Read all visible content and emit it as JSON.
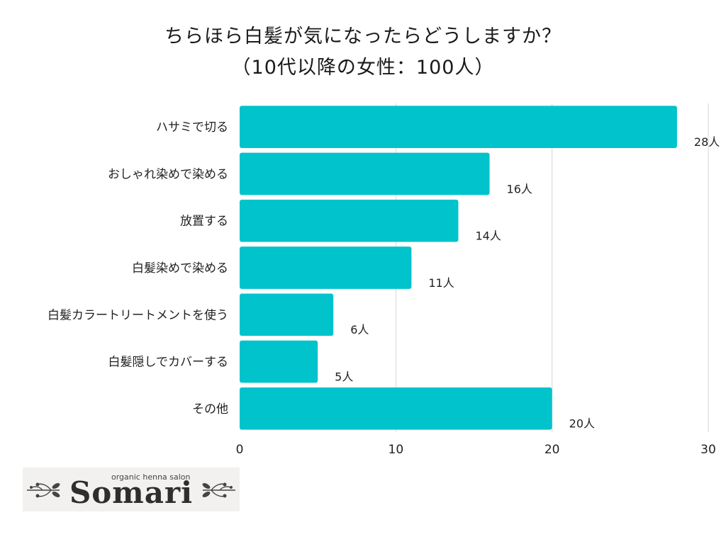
{
  "chart_data": {
    "type": "bar",
    "orientation": "horizontal",
    "title": "ちらほら白髪が気になったらどうしますか？",
    "subtitle": "（10代以降の女性：100人）",
    "categories": [
      "ハサミで切る",
      "おしゃれ染めで染める",
      "放置する",
      "白髪染めで染める",
      "白髪カラートリートメントを使う",
      "白髪隠しでカバーする",
      "その他"
    ],
    "values": [
      28,
      16,
      14,
      11,
      6,
      5,
      20
    ],
    "value_labels": [
      "28人",
      "16人",
      "14人",
      "11人",
      "6人",
      "5人",
      "20人"
    ],
    "xlim": [
      0,
      30
    ],
    "xticks": [
      "0",
      "10",
      "20",
      "30"
    ],
    "grid": true,
    "bar_color": "#00c3cb",
    "grid_color": "#d6d6d6"
  },
  "logo": {
    "tagline": "organic henna salon",
    "name": "Somari"
  }
}
